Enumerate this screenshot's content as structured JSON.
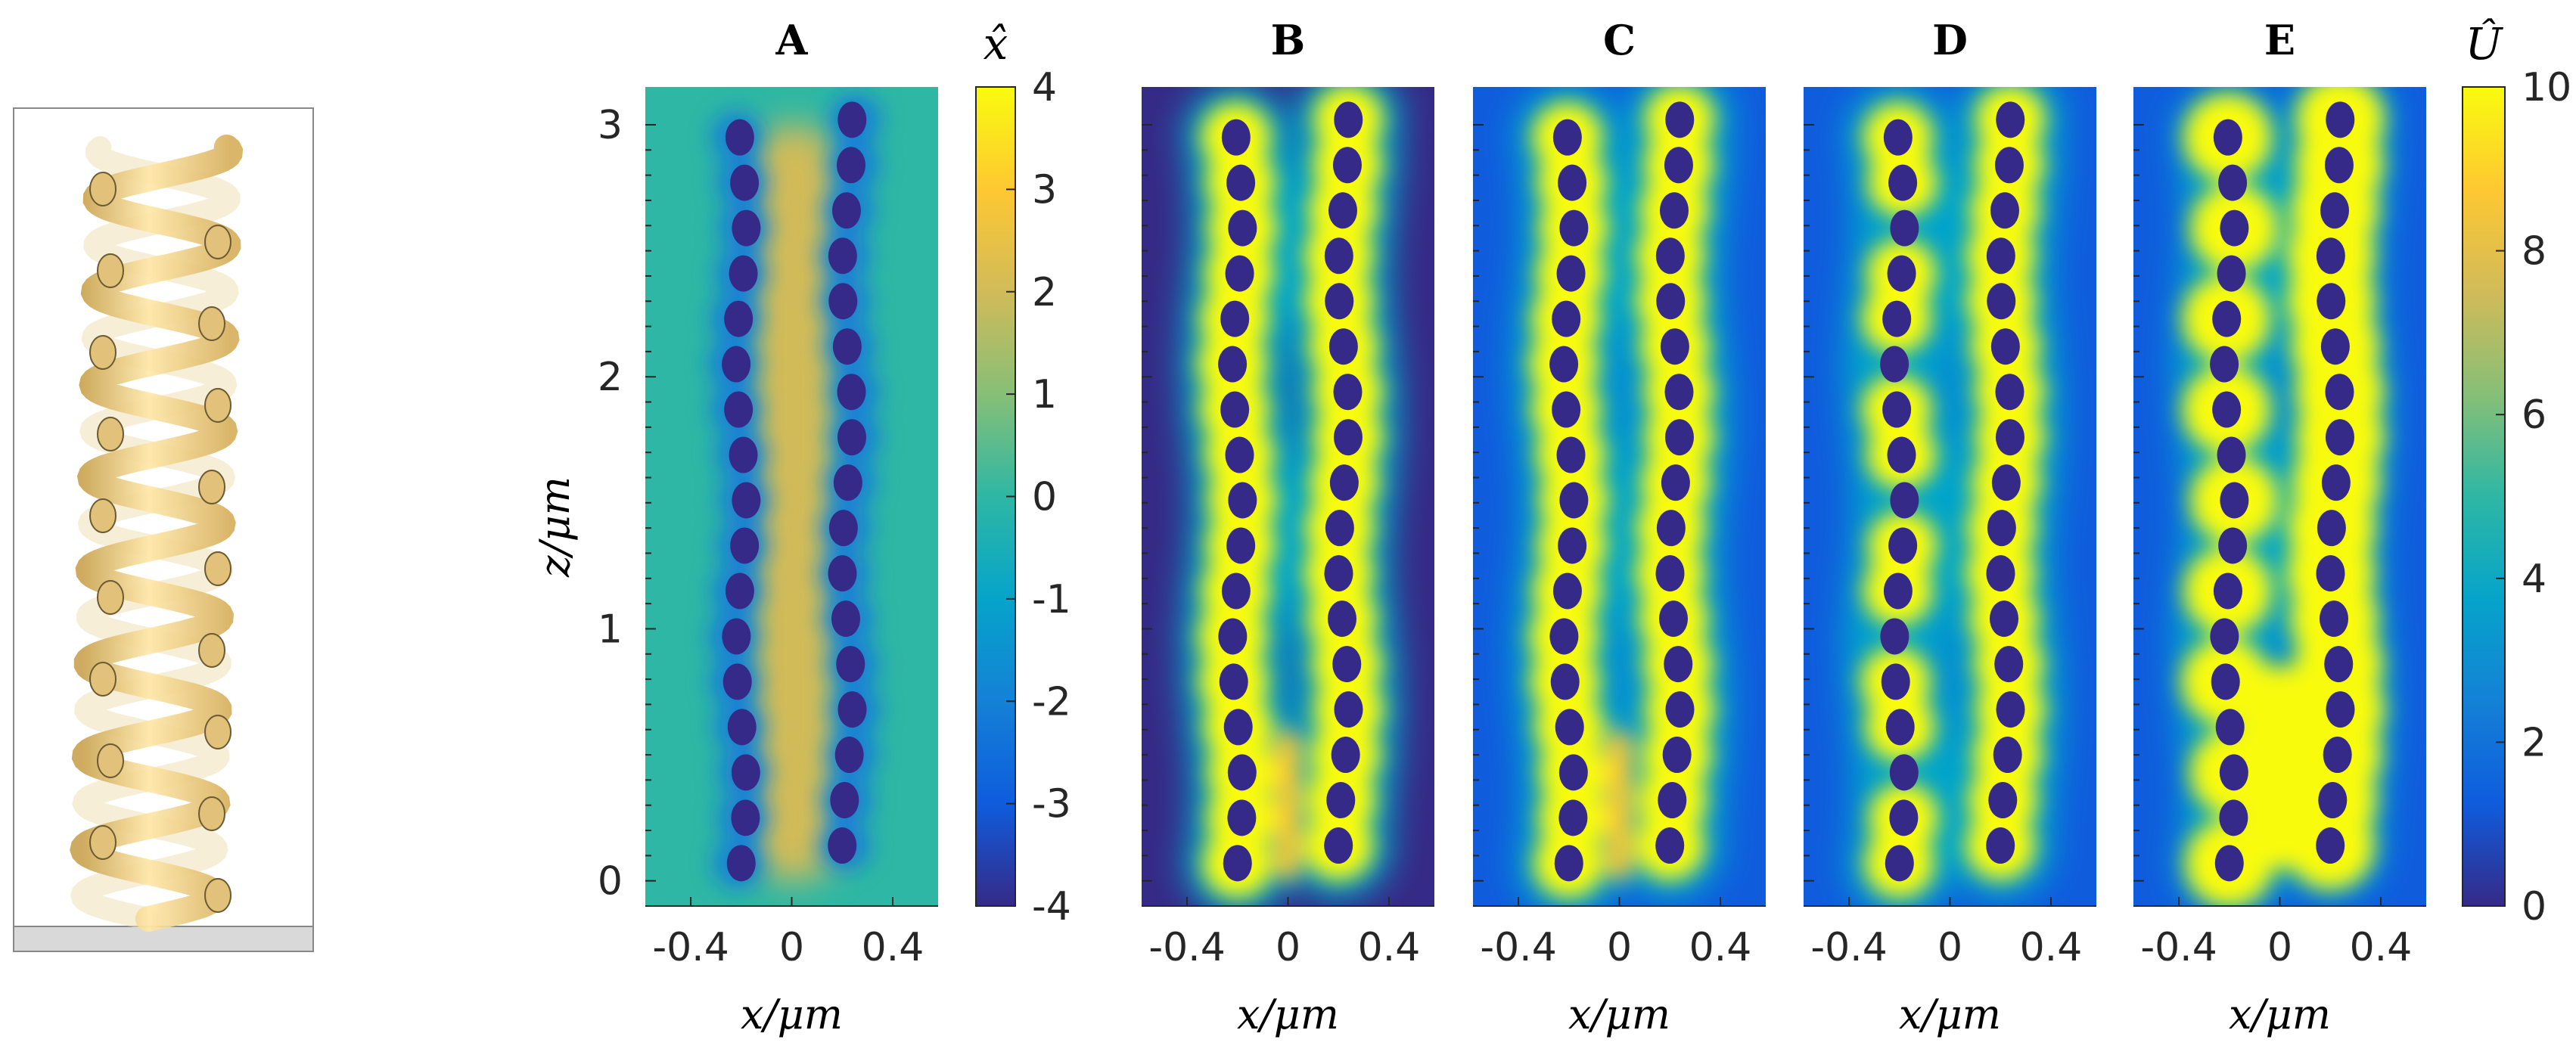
{
  "chart_data": {
    "type": "heatmap",
    "panels": [
      {
        "id": "A",
        "title": "A",
        "field": "x_hat",
        "colorbar": "x_hat_bar"
      },
      {
        "id": "B",
        "title": "B",
        "field": "U_hat",
        "colorbar": "U_hat_bar"
      },
      {
        "id": "C",
        "title": "C",
        "field": "U_hat",
        "colorbar": "U_hat_bar"
      },
      {
        "id": "D",
        "title": "D",
        "field": "U_hat",
        "colorbar": "U_hat_bar"
      },
      {
        "id": "E",
        "title": "E",
        "field": "U_hat",
        "colorbar": "U_hat_bar"
      }
    ],
    "x_axis": {
      "label": "x/μm",
      "range": [
        -0.58,
        0.58
      ],
      "ticks": [
        -0.4,
        0,
        0.4
      ],
      "tick_labels": [
        "-0.4",
        "0",
        "0.4"
      ]
    },
    "y_axis": {
      "label": "z/μm",
      "range": [
        -0.1,
        3.15
      ],
      "ticks": [
        0,
        1,
        2,
        3
      ],
      "tick_labels": [
        "0",
        "1",
        "2",
        "3"
      ]
    },
    "colorbars": {
      "x_hat_bar": {
        "label": "x̂",
        "range": [
          -4,
          4
        ],
        "ticks": [
          4,
          3,
          2,
          1,
          0,
          -1,
          -2,
          -3,
          -4
        ],
        "tick_labels": [
          "4",
          "3",
          "2",
          "1",
          "0",
          "-1",
          "-2",
          "-3",
          "-4"
        ]
      },
      "U_hat_bar": {
        "label": "Û",
        "range": [
          0,
          10
        ],
        "ticks": [
          10,
          8,
          6,
          4,
          2,
          0
        ],
        "tick_labels": [
          "10",
          "8",
          "6",
          "4",
          "2",
          "0"
        ]
      }
    },
    "colormap": [
      "#352a87",
      "#0f5cdd",
      "#1481d6",
      "#06a4ca",
      "#2eb7a4",
      "#87bf77",
      "#d1bb59",
      "#fec832",
      "#f9fb0e"
    ],
    "structure": {
      "description_hidden": true
    },
    "helix_pitch_um": 0.36,
    "helix_radius_um": 0.22,
    "z_range_um": [
      0,
      3
    ]
  }
}
